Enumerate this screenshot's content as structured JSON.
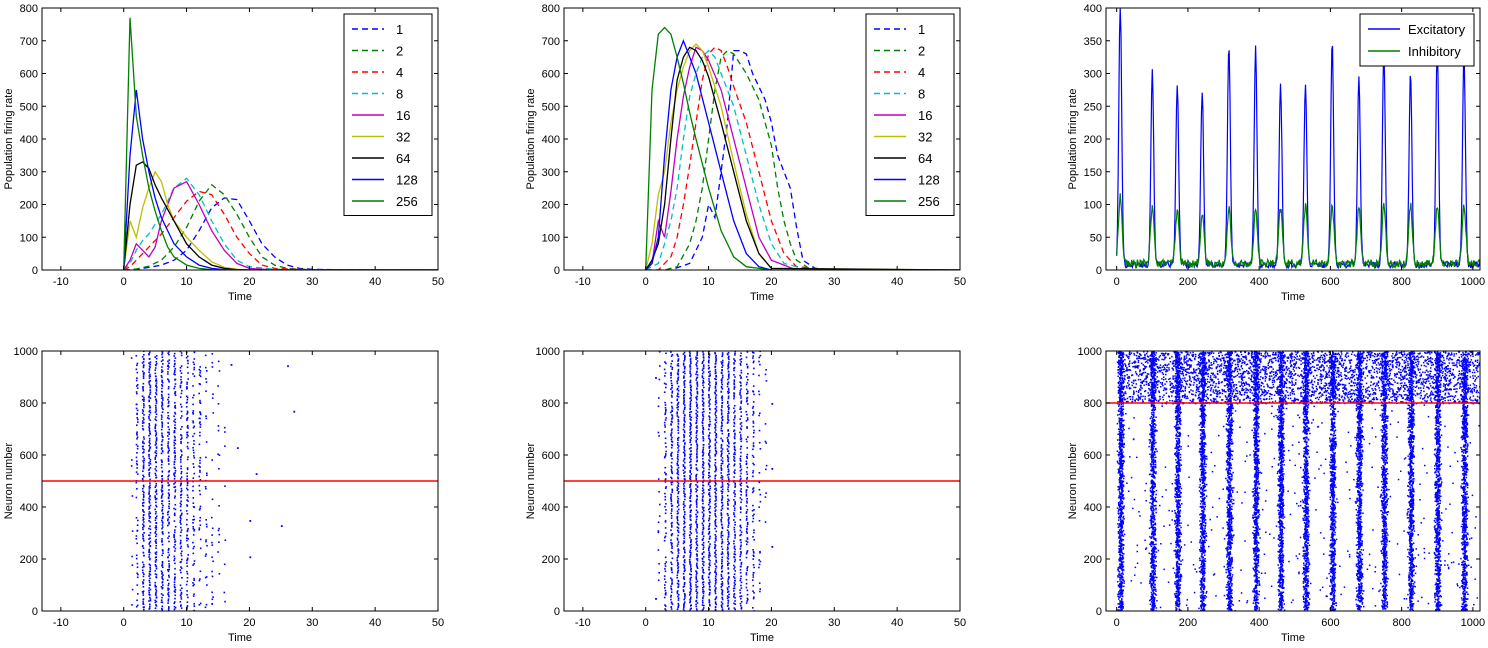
{
  "chart_data": [
    {
      "id": "p1",
      "type": "line",
      "title": "",
      "xlabel": "Time",
      "ylabel": "Population firing rate",
      "xlim": [
        -13,
        50
      ],
      "ylim": [
        0,
        800
      ],
      "xticks": [
        -10,
        0,
        10,
        20,
        30,
        40,
        50
      ],
      "yticks": [
        0,
        100,
        200,
        300,
        400,
        500,
        600,
        700,
        800
      ],
      "legend": "top-right",
      "series": [
        {
          "name": "1",
          "color": "#0000ff",
          "dash": true,
          "x": [
            0,
            2,
            4,
            6,
            8,
            10,
            12,
            14,
            16,
            18,
            20,
            22,
            24,
            26,
            28,
            30,
            34,
            40,
            45,
            50
          ],
          "y": [
            0,
            2,
            8,
            15,
            30,
            60,
            120,
            190,
            220,
            215,
            150,
            80,
            40,
            15,
            5,
            2,
            1,
            0,
            0,
            0
          ]
        },
        {
          "name": "2",
          "color": "#007f00",
          "dash": true,
          "x": [
            0,
            2,
            4,
            6,
            8,
            10,
            12,
            14,
            16,
            18,
            20,
            22,
            24,
            26,
            30,
            40,
            50
          ],
          "y": [
            0,
            3,
            12,
            30,
            70,
            130,
            210,
            260,
            230,
            170,
            100,
            40,
            15,
            5,
            1,
            0,
            0
          ]
        },
        {
          "name": "4",
          "color": "#ff0000",
          "dash": true,
          "x": [
            0,
            1,
            2,
            3,
            4,
            6,
            8,
            10,
            12,
            14,
            16,
            18,
            20,
            22,
            24,
            30,
            40,
            50
          ],
          "y": [
            0,
            10,
            30,
            50,
            70,
            110,
            160,
            210,
            240,
            230,
            170,
            100,
            50,
            15,
            5,
            0,
            0,
            0
          ]
        },
        {
          "name": "8",
          "color": "#00bfbf",
          "dash": true,
          "x": [
            0,
            1,
            2,
            3,
            4,
            6,
            8,
            10,
            12,
            14,
            16,
            18,
            20,
            24,
            30,
            50
          ],
          "y": [
            0,
            20,
            60,
            90,
            110,
            170,
            250,
            280,
            230,
            150,
            80,
            30,
            10,
            2,
            0,
            0
          ]
        },
        {
          "name": "16",
          "color": "#bf00bf",
          "dash": false,
          "x": [
            0,
            1,
            2,
            3,
            4,
            5,
            6,
            8,
            10,
            12,
            14,
            16,
            18,
            20,
            24,
            30,
            50
          ],
          "y": [
            0,
            30,
            80,
            60,
            40,
            70,
            150,
            250,
            270,
            200,
            120,
            60,
            20,
            5,
            0,
            0,
            0
          ]
        },
        {
          "name": "32",
          "color": "#bfbf00",
          "dash": false,
          "x": [
            0,
            1,
            2,
            3,
            4,
            5,
            6,
            7,
            8,
            10,
            12,
            14,
            16,
            18,
            20,
            30,
            50
          ],
          "y": [
            0,
            150,
            100,
            190,
            250,
            300,
            270,
            200,
            150,
            100,
            60,
            25,
            8,
            2,
            0,
            0,
            0
          ]
        },
        {
          "name": "64",
          "color": "#000000",
          "dash": false,
          "x": [
            0,
            1,
            2,
            3,
            4,
            5,
            6,
            8,
            10,
            12,
            14,
            16,
            18,
            20,
            30,
            50
          ],
          "y": [
            0,
            200,
            320,
            330,
            310,
            260,
            220,
            150,
            80,
            40,
            15,
            5,
            1,
            0,
            0,
            0
          ]
        },
        {
          "name": "128",
          "color": "#0000ff",
          "dash": false,
          "x": [
            0,
            1,
            2,
            3,
            4,
            5,
            6,
            8,
            10,
            12,
            14,
            16,
            20,
            30,
            50
          ],
          "y": [
            0,
            350,
            550,
            400,
            300,
            220,
            160,
            80,
            40,
            15,
            5,
            1,
            0,
            0,
            0
          ]
        },
        {
          "name": "256",
          "color": "#007f00",
          "dash": false,
          "x": [
            0,
            1,
            2,
            3,
            4,
            5,
            6,
            7,
            8,
            10,
            12,
            14,
            20,
            30,
            50
          ],
          "y": [
            0,
            770,
            470,
            350,
            250,
            180,
            120,
            70,
            40,
            15,
            5,
            1,
            0,
            0,
            0
          ]
        }
      ]
    },
    {
      "id": "p2",
      "type": "line",
      "title": "",
      "xlabel": "Time",
      "ylabel": "Population firing rate",
      "xlim": [
        -13,
        50
      ],
      "ylim": [
        0,
        800
      ],
      "xticks": [
        -10,
        0,
        10,
        20,
        30,
        40,
        50
      ],
      "yticks": [
        0,
        100,
        200,
        300,
        400,
        500,
        600,
        700,
        800
      ],
      "legend": "top-right",
      "series": [
        {
          "name": "1",
          "color": "#0000ff",
          "dash": true,
          "x": [
            0,
            4,
            7,
            9,
            10,
            11,
            12,
            13,
            14,
            15,
            16,
            17,
            18,
            19,
            20,
            21,
            22,
            23,
            24,
            25,
            27,
            30,
            40,
            50
          ],
          "y": [
            0,
            0,
            20,
            100,
            200,
            160,
            300,
            450,
            670,
            670,
            660,
            600,
            560,
            520,
            450,
            350,
            300,
            250,
            130,
            30,
            5,
            0,
            0,
            0
          ]
        },
        {
          "name": "2",
          "color": "#007f00",
          "dash": true,
          "x": [
            0,
            3,
            5,
            7,
            8,
            9,
            10,
            11,
            12,
            13,
            14,
            16,
            18,
            19,
            20,
            21,
            22,
            23,
            24,
            26,
            30,
            50
          ],
          "y": [
            0,
            0,
            10,
            80,
            150,
            250,
            400,
            550,
            650,
            670,
            660,
            600,
            520,
            450,
            380,
            250,
            150,
            80,
            30,
            5,
            0,
            0
          ]
        },
        {
          "name": "4",
          "color": "#ff0000",
          "dash": true,
          "x": [
            0,
            2,
            4,
            5,
            6,
            7,
            8,
            9,
            10,
            11,
            12,
            13,
            14,
            16,
            18,
            20,
            22,
            24,
            30,
            50
          ],
          "y": [
            0,
            0,
            40,
            100,
            200,
            320,
            450,
            580,
            660,
            680,
            670,
            620,
            560,
            450,
            300,
            150,
            50,
            10,
            0,
            0
          ]
        },
        {
          "name": "8",
          "color": "#00bfbf",
          "dash": true,
          "x": [
            0,
            2,
            3,
            4,
            5,
            6,
            7,
            8,
            9,
            10,
            11,
            12,
            14,
            16,
            18,
            20,
            22,
            26,
            50
          ],
          "y": [
            0,
            20,
            80,
            150,
            250,
            400,
            530,
            600,
            650,
            670,
            650,
            600,
            500,
            350,
            200,
            80,
            20,
            0,
            0
          ]
        },
        {
          "name": "16",
          "color": "#bf00bf",
          "dash": false,
          "x": [
            0,
            1,
            2,
            3,
            4,
            5,
            6,
            7,
            8,
            9,
            10,
            12,
            14,
            16,
            18,
            20,
            24,
            50
          ],
          "y": [
            0,
            20,
            150,
            100,
            240,
            400,
            530,
            620,
            680,
            670,
            640,
            550,
            400,
            250,
            100,
            30,
            0,
            0
          ]
        },
        {
          "name": "32",
          "color": "#bfbf00",
          "dash": false,
          "x": [
            0,
            1,
            2,
            3,
            4,
            5,
            6,
            7,
            8,
            9,
            10,
            12,
            14,
            16,
            18,
            20,
            50
          ],
          "y": [
            0,
            80,
            230,
            300,
            450,
            550,
            620,
            670,
            690,
            670,
            620,
            500,
            330,
            170,
            50,
            5,
            0
          ]
        },
        {
          "name": "64",
          "color": "#000000",
          "dash": false,
          "x": [
            0,
            1,
            2,
            3,
            4,
            5,
            6,
            7,
            8,
            9,
            10,
            12,
            14,
            16,
            18,
            20,
            50
          ],
          "y": [
            0,
            30,
            80,
            200,
            400,
            580,
            650,
            680,
            670,
            640,
            590,
            450,
            300,
            150,
            50,
            5,
            0
          ]
        },
        {
          "name": "128",
          "color": "#0000ff",
          "dash": false,
          "x": [
            0,
            1,
            2,
            3,
            4,
            5,
            6,
            7,
            8,
            10,
            12,
            14,
            16,
            18,
            20,
            50
          ],
          "y": [
            0,
            20,
            100,
            350,
            550,
            650,
            700,
            650,
            600,
            450,
            300,
            150,
            50,
            10,
            0,
            0
          ]
        },
        {
          "name": "256",
          "color": "#007f00",
          "dash": false,
          "x": [
            0,
            1,
            2,
            3,
            4,
            5,
            6,
            7,
            8,
            10,
            12,
            14,
            16,
            20,
            50
          ],
          "y": [
            0,
            550,
            720,
            740,
            720,
            650,
            570,
            480,
            400,
            250,
            120,
            40,
            10,
            0,
            0
          ]
        }
      ]
    },
    {
      "id": "p3",
      "type": "line",
      "title": "",
      "xlabel": "Time",
      "ylabel": "Population firing rate",
      "xlim": [
        -30,
        1020
      ],
      "ylim": [
        0,
        400
      ],
      "xticks": [
        0,
        200,
        400,
        600,
        800,
        1000
      ],
      "yticks": [
        0,
        50,
        100,
        150,
        200,
        250,
        300,
        350,
        400
      ],
      "legend": "top-right",
      "burst_times": [
        10,
        100,
        170,
        240,
        315,
        390,
        460,
        530,
        605,
        680,
        750,
        825,
        900,
        975
      ],
      "series": [
        {
          "name": "Excitatory",
          "color": "#0000ff",
          "peaks": [
            395,
            298,
            272,
            265,
            335,
            332,
            275,
            277,
            342,
            290,
            325,
            293,
            325,
            322
          ],
          "baseline": 8
        },
        {
          "name": "Inhibitory",
          "color": "#007f00",
          "peaks": [
            103,
            85,
            80,
            75,
            85,
            82,
            85,
            88,
            85,
            85,
            87,
            90,
            88,
            90
          ],
          "baseline": 10
        }
      ]
    },
    {
      "id": "p4",
      "type": "scatter",
      "title": "",
      "xlabel": "Time",
      "ylabel": "Neuron number",
      "xlim": [
        -13,
        50
      ],
      "ylim": [
        0,
        1000
      ],
      "xticks": [
        -10,
        0,
        10,
        20,
        30,
        40,
        50
      ],
      "yticks": [
        0,
        200,
        400,
        600,
        800,
        1000
      ],
      "hline": 500,
      "spike_times": [
        1.2,
        2,
        3,
        4,
        5,
        6,
        7,
        8,
        9,
        10,
        11,
        12,
        13,
        14,
        15,
        16
      ],
      "spike_density": [
        0.06,
        0.35,
        0.8,
        0.9,
        0.85,
        0.8,
        0.75,
        0.7,
        0.6,
        0.5,
        0.4,
        0.3,
        0.2,
        0.12,
        0.08,
        0.04
      ],
      "stray_points": [
        [
          17,
          950
        ],
        [
          18,
          630
        ],
        [
          20,
          350
        ],
        [
          20,
          210
        ],
        [
          21,
          530
        ],
        [
          25,
          330
        ],
        [
          26,
          945
        ],
        [
          27,
          770
        ]
      ]
    },
    {
      "id": "p5",
      "type": "scatter",
      "title": "",
      "xlabel": "Time",
      "ylabel": "Neuron number",
      "xlim": [
        -13,
        50
      ],
      "ylim": [
        0,
        1000
      ],
      "xticks": [
        -10,
        0,
        10,
        20,
        30,
        40,
        50
      ],
      "yticks": [
        0,
        200,
        400,
        600,
        800,
        1000
      ],
      "hline": 500,
      "spike_times": [
        2,
        3,
        4,
        5,
        6,
        7,
        8,
        9,
        10,
        11,
        12,
        13,
        14,
        15,
        16,
        17,
        18,
        19
      ],
      "spike_density": [
        0.1,
        0.5,
        0.75,
        0.9,
        0.95,
        0.95,
        0.95,
        0.95,
        0.95,
        0.95,
        0.9,
        0.85,
        0.8,
        0.7,
        0.55,
        0.4,
        0.2,
        0.1
      ],
      "stray_points": [
        [
          1.5,
          50
        ],
        [
          1.5,
          900
        ],
        [
          20,
          800
        ],
        [
          20,
          550
        ],
        [
          20,
          250
        ]
      ]
    },
    {
      "id": "p6",
      "type": "scatter",
      "title": "",
      "xlabel": "Time",
      "ylabel": "Neuron number",
      "xlim": [
        -30,
        1020
      ],
      "ylim": [
        0,
        1000
      ],
      "xticks": [
        0,
        200,
        400,
        600,
        800,
        1000
      ],
      "yticks": [
        0,
        200,
        400,
        600,
        800,
        1000
      ],
      "hline": 800,
      "burst_times": [
        10,
        100,
        170,
        240,
        315,
        390,
        460,
        530,
        605,
        680,
        750,
        825,
        900,
        975
      ],
      "background_excitatory_density": 0.06,
      "background_inhibitory_density": 0.55
    }
  ]
}
